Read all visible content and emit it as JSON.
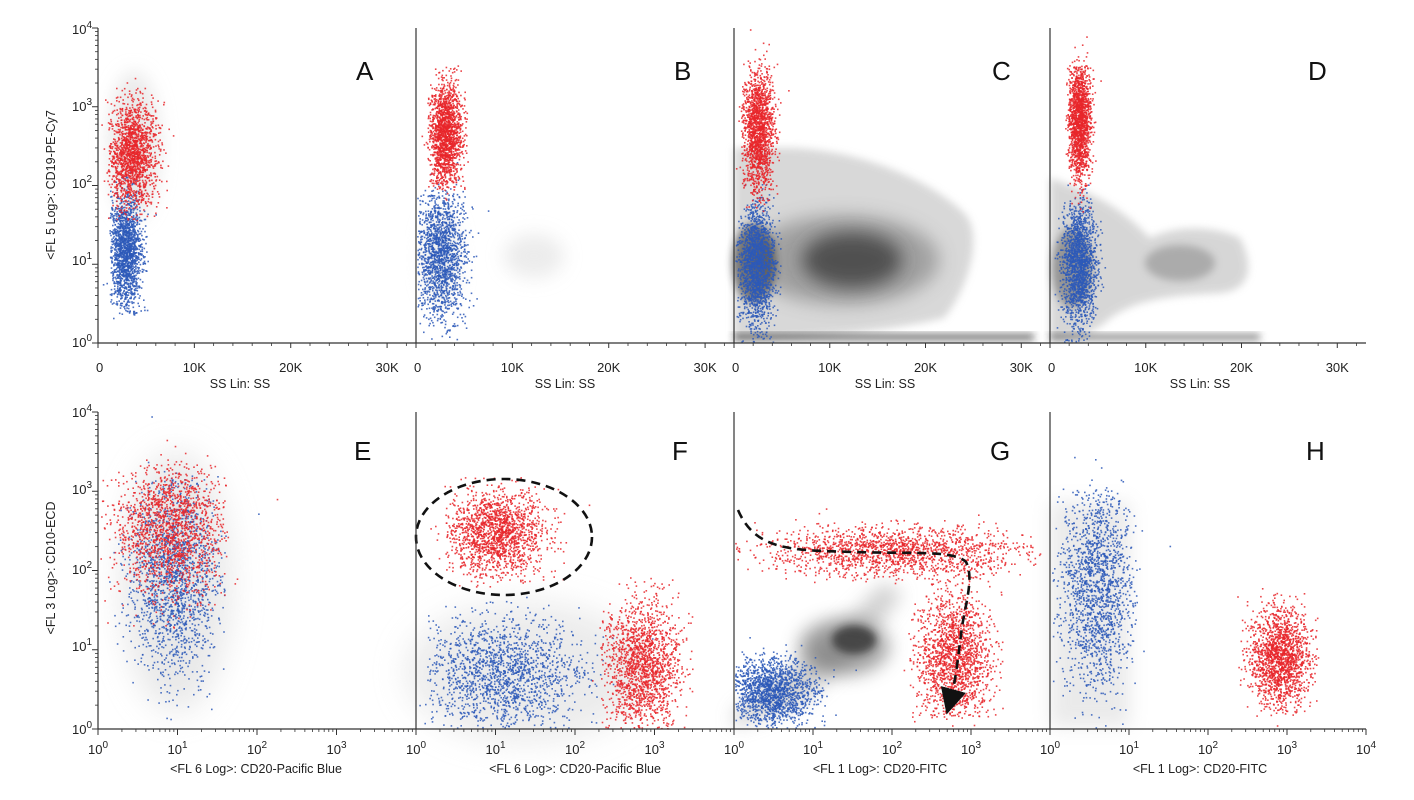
{
  "colors": {
    "red": "#e8262a",
    "blue": "#2d59b8",
    "grey": "#3a3a3a",
    "axis": "#333333"
  },
  "top_row": {
    "ylabel": "<FL 5 Log>: CD19-PE-Cy7",
    "xlabel": "SS Lin: SS",
    "xticks": [
      "0",
      "10K",
      "20K",
      "30K"
    ],
    "xtick_values": [
      0,
      10000,
      20000,
      30000
    ],
    "xlim": [
      0,
      33000
    ],
    "ylim": [
      1,
      10000
    ],
    "ytick_bases": [
      "10",
      "10",
      "10",
      "10",
      "10"
    ],
    "ytick_exps": [
      "0",
      "1",
      "2",
      "3",
      "4"
    ]
  },
  "bottom_row": {
    "ylabel": "<FL 3 Log>: CD10-ECD",
    "xlim": [
      1,
      10000
    ],
    "ylim": [
      1,
      10000
    ],
    "xtick_bases": [
      "10",
      "10",
      "10",
      "10",
      "10"
    ],
    "xtick_exps": [
      "0",
      "1",
      "2",
      "3",
      "4"
    ],
    "ytick_bases": [
      "10",
      "10",
      "10",
      "10",
      "10"
    ],
    "ytick_exps": [
      "0",
      "1",
      "2",
      "3",
      "4"
    ]
  },
  "chart_data": [
    {
      "type": "scatter",
      "panel": "A",
      "xlabel": "SS Lin: SS",
      "ylabel": "<FL 5 Log>: CD19-PE-Cy7",
      "xlim": [
        0,
        33000
      ],
      "ylim": [
        1,
        10000
      ],
      "yscale": "log",
      "series": [
        {
          "color": "red",
          "clusters": [
            {
              "x": 3500,
              "y": 250,
              "x_range": [
                1500,
                7000
              ],
              "y_range": [
                50,
                1300
              ]
            }
          ]
        },
        {
          "color": "blue",
          "clusters": [
            {
              "x": 2800,
              "y": 15,
              "x_range": [
                1500,
                5000
              ],
              "y_range": [
                3,
                100
              ]
            }
          ]
        }
      ]
    },
    {
      "type": "scatter",
      "panel": "B",
      "xlabel": "SS Lin: SS",
      "xlim": [
        0,
        33000
      ],
      "ylim": [
        1,
        10000
      ],
      "yscale": "log",
      "series": [
        {
          "color": "red",
          "clusters": [
            {
              "x": 3000,
              "y": 450,
              "x_range": [
                1500,
                5000
              ],
              "y_range": [
                120,
                3000
              ]
            }
          ]
        },
        {
          "color": "blue",
          "clusters": [
            {
              "x": 2500,
              "y": 14,
              "x_range": [
                500,
                6000
              ],
              "y_range": [
                1,
                60
              ]
            }
          ]
        },
        {
          "color": "grey",
          "clusters": [
            {
              "x": 12500,
              "y": 15,
              "x_range": [
                9000,
                16000
              ],
              "y_range": [
                8,
                25
              ]
            }
          ]
        }
      ]
    },
    {
      "type": "scatter",
      "panel": "C",
      "xlabel": "SS Lin: SS",
      "xlim": [
        0,
        33000
      ],
      "ylim": [
        1,
        10000
      ],
      "yscale": "log",
      "series": [
        {
          "color": "red",
          "clusters": [
            {
              "x": 2500,
              "y": 500,
              "x_range": [
                1000,
                4500
              ],
              "y_range": [
                60,
                3000
              ]
            }
          ]
        },
        {
          "color": "blue",
          "clusters": [
            {
              "x": 2300,
              "y": 10,
              "x_range": [
                500,
                4500
              ],
              "y_range": [
                1,
                50
              ]
            }
          ]
        },
        {
          "color": "grey",
          "clusters": [
            {
              "x": 12000,
              "y": 10,
              "x_range": [
                0,
                24000
              ],
              "y_range": [
                1,
                60
              ]
            }
          ]
        }
      ]
    },
    {
      "type": "scatter",
      "panel": "D",
      "xlabel": "SS Lin: SS",
      "xlim": [
        0,
        33000
      ],
      "ylim": [
        1,
        10000
      ],
      "yscale": "log",
      "series": [
        {
          "color": "red",
          "clusters": [
            {
              "x": 3000,
              "y": 700,
              "x_range": [
                2000,
                4500
              ],
              "y_range": [
                60,
                2500
              ]
            }
          ]
        },
        {
          "color": "blue",
          "clusters": [
            {
              "x": 3000,
              "y": 10,
              "x_range": [
                1000,
                5000
              ],
              "y_range": [
                1,
                50
              ]
            }
          ]
        },
        {
          "color": "grey",
          "clusters": [
            {
              "x": 12000,
              "y": 8,
              "x_range": [
                0,
                22000
              ],
              "y_range": [
                1,
                60
              ]
            }
          ]
        }
      ]
    },
    {
      "type": "scatter",
      "panel": "E",
      "xlabel": "<FL 6 Log>: CD20-Pacific Blue",
      "ylabel": "<FL 3 Log>: CD10-ECD",
      "xlim": [
        1,
        10000
      ],
      "ylim": [
        1,
        10000
      ],
      "xscale": "log",
      "yscale": "log",
      "series": [
        {
          "color": "red",
          "clusters": [
            {
              "x": 8,
              "y": 350,
              "x_range": [
                1,
                30
              ],
              "y_range": [
                20,
                1500
              ]
            }
          ]
        },
        {
          "color": "blue",
          "clusters": [
            {
              "x": 9,
              "y": 80,
              "x_range": [
                2,
                30
              ],
              "y_range": [
                2,
                1000
              ]
            }
          ]
        }
      ]
    },
    {
      "type": "scatter",
      "panel": "F",
      "xlabel": "<FL 6 Log>: CD20-Pacific Blue",
      "xlim": [
        1,
        10000
      ],
      "ylim": [
        1,
        10000
      ],
      "xscale": "log",
      "yscale": "log",
      "annotations": [
        "dashed ellipse around red cluster near (10, 300)"
      ],
      "series": [
        {
          "color": "red",
          "clusters": [
            {
              "x": 10,
              "y": 300,
              "x_range": [
                3,
                60
              ],
              "y_range": [
                80,
                1200
              ]
            },
            {
              "x": 700,
              "y": 6,
              "x_range": [
                250,
                2500
              ],
              "y_range": [
                1,
                60
              ]
            }
          ]
        },
        {
          "color": "blue",
          "clusters": [
            {
              "x": 12,
              "y": 5,
              "x_range": [
                2,
                250
              ],
              "y_range": [
                1,
                30
              ]
            }
          ]
        }
      ]
    },
    {
      "type": "scatter",
      "panel": "G",
      "xlabel": "<FL 1 Log>: CD20-FITC",
      "xlim": [
        1,
        10000
      ],
      "ylim": [
        1,
        10000
      ],
      "xscale": "log",
      "yscale": "log",
      "annotations": [
        "dashed arrow from upper-left along red band turning down to (500, 1.3)"
      ],
      "series": [
        {
          "color": "red",
          "clusters": [
            {
              "x": 100,
              "y": 180,
              "x_range": [
                1,
                3000
              ],
              "y_range": [
                80,
                400
              ]
            },
            {
              "x": 600,
              "y": 8,
              "x_range": [
                200,
                2000
              ],
              "y_range": [
                2,
                100
              ]
            }
          ]
        },
        {
          "color": "blue",
          "clusters": [
            {
              "x": 3,
              "y": 3,
              "x_range": [
                1,
                15
              ],
              "y_range": [
                1,
                8
              ]
            }
          ]
        },
        {
          "color": "grey",
          "clusters": [
            {
              "x": 25,
              "y": 12,
              "x_range": [
                5,
                60
              ],
              "y_range": [
                4,
                40
              ]
            }
          ]
        }
      ]
    },
    {
      "type": "scatter",
      "panel": "H",
      "xlabel": "<FL 1 Log>: CD20-FITC",
      "xlim": [
        1,
        10000
      ],
      "ylim": [
        1,
        10000
      ],
      "xscale": "log",
      "yscale": "log",
      "series": [
        {
          "color": "blue",
          "clusters": [
            {
              "x": 4,
              "y": 60,
              "x_range": [
                1,
                10
              ],
              "y_range": [
                1,
                600
              ]
            }
          ]
        },
        {
          "color": "red",
          "clusters": [
            {
              "x": 800,
              "y": 8,
              "x_range": [
                300,
                2000
              ],
              "y_range": [
                2,
                40
              ]
            }
          ]
        }
      ]
    }
  ]
}
